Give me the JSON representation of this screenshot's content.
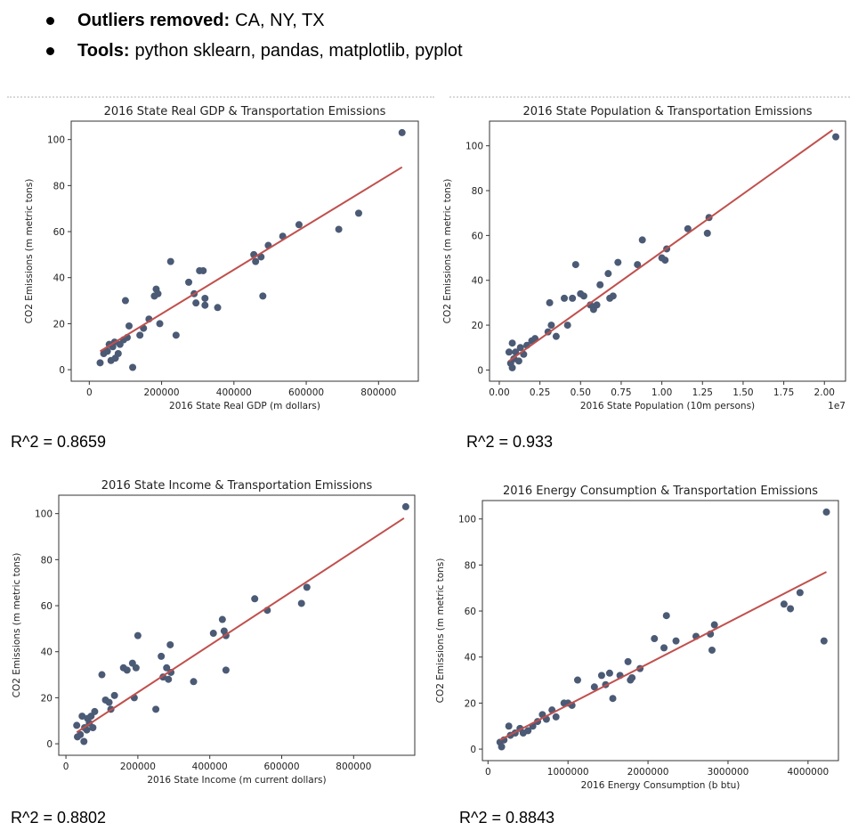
{
  "bullets": [
    {
      "label": "Outliers removed:",
      "text": "CA, NY, TX"
    },
    {
      "label": "Tools:",
      "text": "python sklearn, pandas, matplotlib, pyplot"
    }
  ],
  "r2_labels": [
    "R^2 = 0.8659",
    "R^2 = 0.933",
    "R^2 = 0.8802",
    "R^2 = 0.8843"
  ],
  "colors": {
    "points": "#4b5a75",
    "line": "#c0504d",
    "axes": "#333333"
  },
  "chart_data": [
    {
      "type": "scatter",
      "title": "2016 State Real GDP & Transportation Emissions",
      "xlabel": "2016 State Real GDP (m dollars)",
      "ylabel": "CO2 Emissions (m metric tons)",
      "xlim": [
        -50000,
        910000
      ],
      "ylim": [
        -5,
        108
      ],
      "xticks": [
        0,
        200000,
        400000,
        600000,
        800000
      ],
      "xtick_labels": [
        "0",
        "200000",
        "400000",
        "600000",
        "800000"
      ],
      "yticks": [
        0,
        20,
        40,
        60,
        80,
        100
      ],
      "ytick_labels": [
        "0",
        "20",
        "40",
        "60",
        "80",
        "100"
      ],
      "x_offset_label": "",
      "regression": {
        "x": [
          30000,
          865000
        ],
        "y": [
          8,
          88
        ]
      },
      "points": [
        {
          "x": 30000,
          "y": 3
        },
        {
          "x": 40000,
          "y": 7
        },
        {
          "x": 50000,
          "y": 8
        },
        {
          "x": 55000,
          "y": 11
        },
        {
          "x": 60000,
          "y": 4
        },
        {
          "x": 65000,
          "y": 10
        },
        {
          "x": 70000,
          "y": 12
        },
        {
          "x": 72000,
          "y": 5
        },
        {
          "x": 80000,
          "y": 7
        },
        {
          "x": 85000,
          "y": 11
        },
        {
          "x": 95000,
          "y": 13
        },
        {
          "x": 100000,
          "y": 30
        },
        {
          "x": 105000,
          "y": 14
        },
        {
          "x": 110000,
          "y": 19
        },
        {
          "x": 120000,
          "y": 1
        },
        {
          "x": 140000,
          "y": 15
        },
        {
          "x": 150000,
          "y": 18
        },
        {
          "x": 165000,
          "y": 22
        },
        {
          "x": 180000,
          "y": 32
        },
        {
          "x": 185000,
          "y": 35
        },
        {
          "x": 190000,
          "y": 33
        },
        {
          "x": 195000,
          "y": 20
        },
        {
          "x": 225000,
          "y": 47
        },
        {
          "x": 240000,
          "y": 15
        },
        {
          "x": 275000,
          "y": 38
        },
        {
          "x": 290000,
          "y": 33
        },
        {
          "x": 295000,
          "y": 29
        },
        {
          "x": 305000,
          "y": 43
        },
        {
          "x": 315000,
          "y": 43
        },
        {
          "x": 320000,
          "y": 31
        },
        {
          "x": 320000,
          "y": 28
        },
        {
          "x": 355000,
          "y": 27
        },
        {
          "x": 455000,
          "y": 50
        },
        {
          "x": 460000,
          "y": 47
        },
        {
          "x": 475000,
          "y": 49
        },
        {
          "x": 480000,
          "y": 32
        },
        {
          "x": 495000,
          "y": 54
        },
        {
          "x": 535000,
          "y": 58
        },
        {
          "x": 580000,
          "y": 63
        },
        {
          "x": 690000,
          "y": 61
        },
        {
          "x": 745000,
          "y": 68
        },
        {
          "x": 865000,
          "y": 103
        }
      ]
    },
    {
      "type": "scatter",
      "title": "2016 State Population & Transportation Emissions",
      "xlabel": "2016 State Population (10m persons)",
      "ylabel": "CO2 Emissions (m metric tons)",
      "xlim": [
        -0.06,
        2.13
      ],
      "ylim": [
        -5,
        111
      ],
      "xticks": [
        0,
        0.25,
        0.5,
        0.75,
        1.0,
        1.25,
        1.5,
        1.75,
        2.0
      ],
      "xtick_labels": [
        "0.00",
        "0.25",
        "0.50",
        "0.75",
        "1.00",
        "1.25",
        "1.50",
        "1.75",
        "2.00"
      ],
      "yticks": [
        0,
        20,
        40,
        60,
        80,
        100
      ],
      "ytick_labels": [
        "0",
        "20",
        "40",
        "60",
        "80",
        "100"
      ],
      "x_offset_label": "1e7",
      "regression": {
        "x": [
          0.06,
          2.05
        ],
        "y": [
          4,
          107
        ]
      },
      "points": [
        {
          "x": 0.06,
          "y": 8
        },
        {
          "x": 0.07,
          "y": 3
        },
        {
          "x": 0.08,
          "y": 1
        },
        {
          "x": 0.08,
          "y": 12
        },
        {
          "x": 0.09,
          "y": 5
        },
        {
          "x": 0.1,
          "y": 8
        },
        {
          "x": 0.12,
          "y": 4
        },
        {
          "x": 0.13,
          "y": 10
        },
        {
          "x": 0.15,
          "y": 7
        },
        {
          "x": 0.17,
          "y": 11
        },
        {
          "x": 0.2,
          "y": 13
        },
        {
          "x": 0.22,
          "y": 14
        },
        {
          "x": 0.3,
          "y": 17
        },
        {
          "x": 0.31,
          "y": 30
        },
        {
          "x": 0.32,
          "y": 20
        },
        {
          "x": 0.35,
          "y": 15
        },
        {
          "x": 0.4,
          "y": 32
        },
        {
          "x": 0.42,
          "y": 20
        },
        {
          "x": 0.45,
          "y": 32
        },
        {
          "x": 0.47,
          "y": 47
        },
        {
          "x": 0.5,
          "y": 34
        },
        {
          "x": 0.52,
          "y": 33
        },
        {
          "x": 0.56,
          "y": 29
        },
        {
          "x": 0.58,
          "y": 27
        },
        {
          "x": 0.6,
          "y": 29
        },
        {
          "x": 0.62,
          "y": 38
        },
        {
          "x": 0.67,
          "y": 43
        },
        {
          "x": 0.68,
          "y": 32
        },
        {
          "x": 0.7,
          "y": 33
        },
        {
          "x": 0.73,
          "y": 48
        },
        {
          "x": 0.88,
          "y": 58
        },
        {
          "x": 0.85,
          "y": 47
        },
        {
          "x": 1.0,
          "y": 50
        },
        {
          "x": 1.02,
          "y": 49
        },
        {
          "x": 1.03,
          "y": 54
        },
        {
          "x": 1.16,
          "y": 63
        },
        {
          "x": 1.28,
          "y": 61
        },
        {
          "x": 1.29,
          "y": 68
        },
        {
          "x": 2.07,
          "y": 104
        }
      ]
    },
    {
      "type": "scatter",
      "title": "2016 State Income & Transportation Emissions",
      "xlabel": "2016 State Income (m current dollars)",
      "ylabel": "CO2 Emissions (m metric tons)",
      "xlim": [
        -20000,
        970000
      ],
      "ylim": [
        -5,
        108
      ],
      "xticks": [
        0,
        200000,
        400000,
        600000,
        800000
      ],
      "xtick_labels": [
        "0",
        "200000",
        "400000",
        "600000",
        "800000"
      ],
      "yticks": [
        0,
        20,
        40,
        60,
        80,
        100
      ],
      "ytick_labels": [
        "0",
        "20",
        "40",
        "60",
        "80",
        "100"
      ],
      "x_offset_label": "",
      "regression": {
        "x": [
          30000,
          940000
        ],
        "y": [
          5,
          98
        ]
      },
      "points": [
        {
          "x": 30000,
          "y": 8
        },
        {
          "x": 32000,
          "y": 3
        },
        {
          "x": 40000,
          "y": 4
        },
        {
          "x": 45000,
          "y": 12
        },
        {
          "x": 50000,
          "y": 1
        },
        {
          "x": 52000,
          "y": 7
        },
        {
          "x": 58000,
          "y": 6
        },
        {
          "x": 60000,
          "y": 11
        },
        {
          "x": 65000,
          "y": 9
        },
        {
          "x": 70000,
          "y": 12
        },
        {
          "x": 75000,
          "y": 7
        },
        {
          "x": 80000,
          "y": 14
        },
        {
          "x": 100000,
          "y": 30
        },
        {
          "x": 110000,
          "y": 19
        },
        {
          "x": 120000,
          "y": 18
        },
        {
          "x": 125000,
          "y": 15
        },
        {
          "x": 135000,
          "y": 21
        },
        {
          "x": 160000,
          "y": 33
        },
        {
          "x": 170000,
          "y": 32
        },
        {
          "x": 185000,
          "y": 35
        },
        {
          "x": 190000,
          "y": 20
        },
        {
          "x": 195000,
          "y": 33
        },
        {
          "x": 200000,
          "y": 47
        },
        {
          "x": 250000,
          "y": 15
        },
        {
          "x": 265000,
          "y": 38
        },
        {
          "x": 270000,
          "y": 29
        },
        {
          "x": 280000,
          "y": 33
        },
        {
          "x": 285000,
          "y": 28
        },
        {
          "x": 290000,
          "y": 43
        },
        {
          "x": 292000,
          "y": 31
        },
        {
          "x": 355000,
          "y": 27
        },
        {
          "x": 410000,
          "y": 48
        },
        {
          "x": 435000,
          "y": 54
        },
        {
          "x": 440000,
          "y": 49
        },
        {
          "x": 445000,
          "y": 47
        },
        {
          "x": 445000,
          "y": 32
        },
        {
          "x": 525000,
          "y": 63
        },
        {
          "x": 560000,
          "y": 58
        },
        {
          "x": 655000,
          "y": 61
        },
        {
          "x": 670000,
          "y": 68
        },
        {
          "x": 945000,
          "y": 103
        }
      ]
    },
    {
      "type": "scatter",
      "title": "2016 Energy Consumption & Transportation Emissions",
      "xlabel": "2016 Energy Consumption (b btu)",
      "ylabel": "CO2 Emissions (m metric tons)",
      "xlim": [
        -70000,
        4380000
      ],
      "ylim": [
        -5,
        108
      ],
      "xticks": [
        0,
        1000000,
        2000000,
        3000000,
        4000000
      ],
      "xtick_labels": [
        "0",
        "1000000",
        "2000000",
        "3000000",
        "4000000"
      ],
      "yticks": [
        0,
        20,
        40,
        60,
        80,
        100
      ],
      "ytick_labels": [
        "0",
        "20",
        "40",
        "60",
        "80",
        "100"
      ],
      "x_offset_label": "",
      "regression": {
        "x": [
          150000,
          4230000
        ],
        "y": [
          4,
          77
        ]
      },
      "points": [
        {
          "x": 150000,
          "y": 3
        },
        {
          "x": 170000,
          "y": 1
        },
        {
          "x": 200000,
          "y": 4
        },
        {
          "x": 260000,
          "y": 10
        },
        {
          "x": 280000,
          "y": 6
        },
        {
          "x": 340000,
          "y": 7
        },
        {
          "x": 400000,
          "y": 9
        },
        {
          "x": 440000,
          "y": 7
        },
        {
          "x": 500000,
          "y": 8
        },
        {
          "x": 560000,
          "y": 10
        },
        {
          "x": 620000,
          "y": 12
        },
        {
          "x": 680000,
          "y": 15
        },
        {
          "x": 730000,
          "y": 13
        },
        {
          "x": 800000,
          "y": 17
        },
        {
          "x": 850000,
          "y": 14
        },
        {
          "x": 950000,
          "y": 20
        },
        {
          "x": 1000000,
          "y": 20
        },
        {
          "x": 1050000,
          "y": 19
        },
        {
          "x": 1120000,
          "y": 30
        },
        {
          "x": 1330000,
          "y": 27
        },
        {
          "x": 1420000,
          "y": 32
        },
        {
          "x": 1470000,
          "y": 28
        },
        {
          "x": 1520000,
          "y": 33
        },
        {
          "x": 1560000,
          "y": 22
        },
        {
          "x": 1650000,
          "y": 32
        },
        {
          "x": 1750000,
          "y": 38
        },
        {
          "x": 1780000,
          "y": 30
        },
        {
          "x": 1800000,
          "y": 31
        },
        {
          "x": 1900000,
          "y": 35
        },
        {
          "x": 2080000,
          "y": 48
        },
        {
          "x": 2200000,
          "y": 44
        },
        {
          "x": 2230000,
          "y": 58
        },
        {
          "x": 2350000,
          "y": 47
        },
        {
          "x": 2600000,
          "y": 49
        },
        {
          "x": 2780000,
          "y": 50
        },
        {
          "x": 2800000,
          "y": 43
        },
        {
          "x": 2830000,
          "y": 54
        },
        {
          "x": 3700000,
          "y": 63
        },
        {
          "x": 3780000,
          "y": 61
        },
        {
          "x": 3900000,
          "y": 68
        },
        {
          "x": 4200000,
          "y": 47
        },
        {
          "x": 4230000,
          "y": 103
        }
      ]
    }
  ]
}
